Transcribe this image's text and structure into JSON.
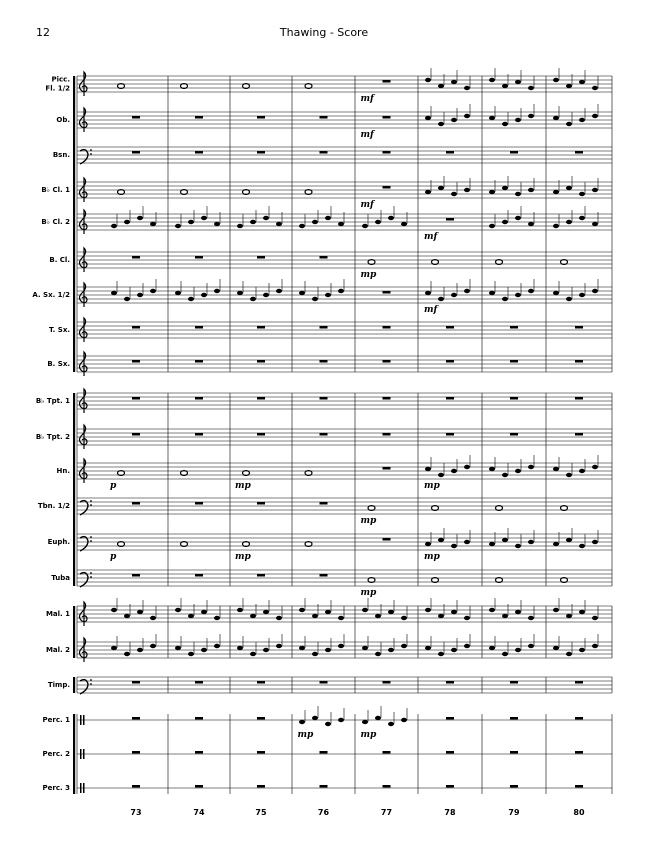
{
  "header": {
    "page_number": "12",
    "title": "Thawing - Score"
  },
  "instruments": [
    {
      "label": [
        "Picc.",
        "Fl. 1/2"
      ],
      "dynamics": [
        null,
        null,
        null,
        null,
        "mf",
        null,
        null,
        null
      ]
    },
    {
      "label": [
        "Ob."
      ],
      "dynamics": [
        null,
        null,
        null,
        null,
        "mf",
        null,
        null,
        null
      ]
    },
    {
      "label": [
        "Bsn."
      ],
      "dynamics": [
        null,
        null,
        null,
        null,
        null,
        null,
        null,
        null
      ]
    },
    {
      "label": [
        "B♭ Cl. 1"
      ],
      "dynamics": [
        null,
        null,
        null,
        null,
        "mf",
        null,
        null,
        null
      ]
    },
    {
      "label": [
        "B♭ Cl. 2"
      ],
      "dynamics": [
        null,
        null,
        null,
        null,
        null,
        "mf",
        null,
        null
      ]
    },
    {
      "label": [
        "B. Cl."
      ],
      "dynamics": [
        null,
        null,
        null,
        null,
        "mp",
        null,
        null,
        null
      ]
    },
    {
      "label": [
        "A. Sx. 1/2"
      ],
      "dynamics": [
        null,
        null,
        null,
        null,
        null,
        "mf",
        null,
        null
      ]
    },
    {
      "label": [
        "T. Sx."
      ],
      "dynamics": [
        null,
        null,
        null,
        null,
        null,
        null,
        null,
        null
      ]
    },
    {
      "label": [
        "B. Sx."
      ],
      "dynamics": [
        null,
        null,
        null,
        null,
        null,
        null,
        null,
        null
      ]
    },
    {
      "label": [
        "B♭ Tpt. 1"
      ],
      "dynamics": [
        null,
        null,
        null,
        null,
        null,
        null,
        null,
        null
      ]
    },
    {
      "label": [
        "B♭ Tpt. 2"
      ],
      "dynamics": [
        null,
        null,
        null,
        null,
        null,
        null,
        null,
        null
      ]
    },
    {
      "label": [
        "Hn."
      ],
      "dynamics": [
        "p",
        null,
        "mp",
        null,
        null,
        "mp",
        null,
        null
      ]
    },
    {
      "label": [
        "Tbn. 1/2"
      ],
      "dynamics": [
        null,
        null,
        null,
        null,
        "mp",
        null,
        null,
        null
      ]
    },
    {
      "label": [
        "Euph."
      ],
      "dynamics": [
        "p",
        null,
        "mp",
        null,
        null,
        "mp",
        null,
        null
      ]
    },
    {
      "label": [
        "Tuba"
      ],
      "dynamics": [
        null,
        null,
        null,
        null,
        "mp",
        null,
        null,
        null
      ]
    },
    {
      "label": [
        "Mal. 1"
      ],
      "dynamics": [
        null,
        null,
        null,
        null,
        null,
        null,
        null,
        null
      ]
    },
    {
      "label": [
        "Mal. 2"
      ],
      "dynamics": [
        null,
        null,
        null,
        null,
        null,
        null,
        null,
        null
      ]
    },
    {
      "label": [
        "Timp."
      ],
      "dynamics": [
        null,
        null,
        null,
        null,
        null,
        null,
        null,
        null
      ]
    },
    {
      "label": [
        "Perc. 1"
      ],
      "dynamics": [
        null,
        null,
        null,
        "mp",
        "mp",
        null,
        null,
        null
      ]
    },
    {
      "label": [
        "Perc. 2"
      ],
      "dynamics": [
        null,
        null,
        null,
        null,
        null,
        null,
        null,
        null
      ]
    },
    {
      "label": [
        "Perc. 3"
      ],
      "dynamics": [
        null,
        null,
        null,
        null,
        null,
        null,
        null,
        null
      ]
    }
  ],
  "measure_numbers": [
    "73",
    "74",
    "75",
    "76",
    "77",
    "78",
    "79",
    "80"
  ]
}
